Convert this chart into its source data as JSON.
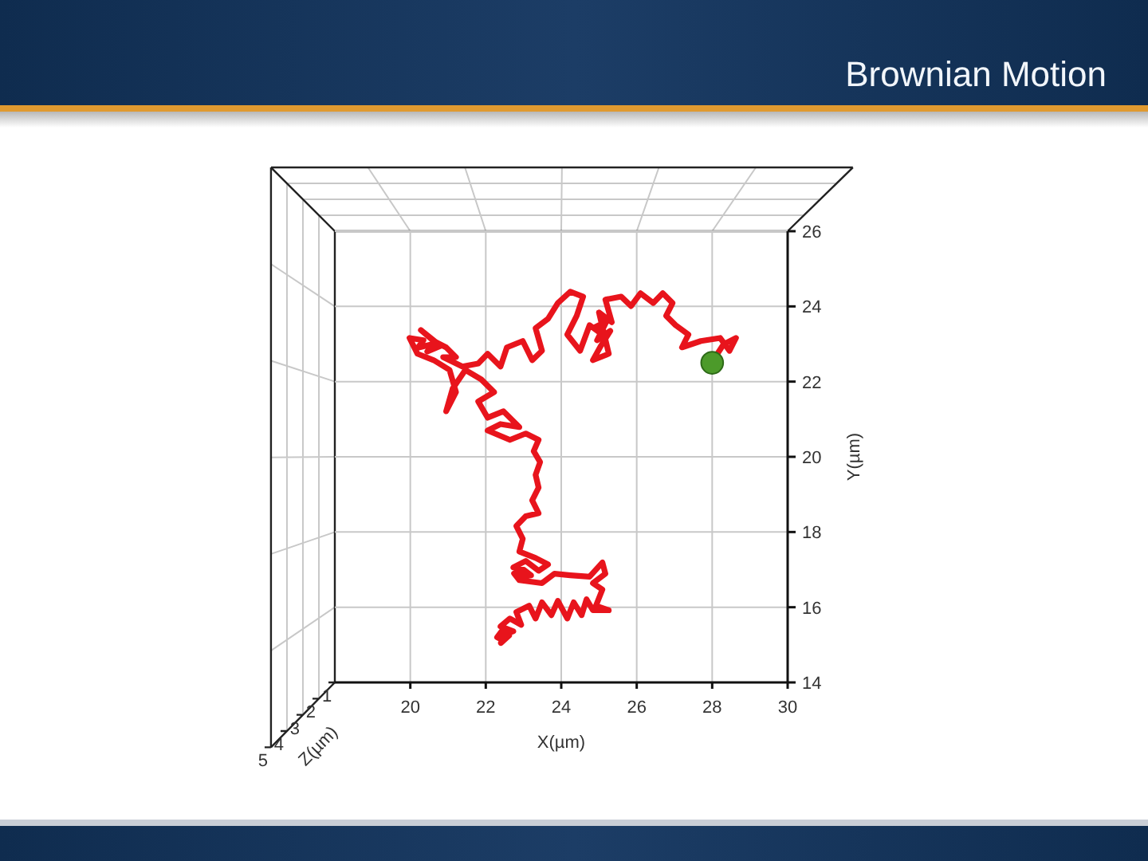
{
  "chart_data": {
    "type": "line",
    "title": "Brownian Motion",
    "xlabel": "X(µm)",
    "ylabel": "Y(µm)",
    "annotations": [
      "Z(µm)",
      "1",
      "2",
      "3",
      "4",
      "5"
    ],
    "xlim": [
      18,
      30
    ],
    "xticks": [
      20,
      22,
      24,
      26,
      28,
      30
    ],
    "ylim": [
      14,
      26
    ],
    "yticks": [
      14,
      16,
      18,
      20,
      22,
      24,
      26
    ],
    "grid": true,
    "series": [
      {
        "color": "#e8141c",
        "x": [
          22.47,
          22.3,
          22.45,
          22.62,
          22.4,
          22.55,
          22.73,
          22.39,
          22.64,
          22.94,
          22.81,
          23.15,
          23.32,
          23.49,
          23.74,
          23.91,
          24.16,
          24.33,
          24.54,
          24.67,
          24.84,
          25.26,
          24.92,
          25.09,
          24.84,
          25.17,
          25.09,
          24.75,
          24.24,
          23.82,
          23.49,
          22.89,
          22.75,
          23.05,
          22.85,
          23.2,
          23.0,
          22.73,
          23.06,
          23.4,
          23.65,
          23.32,
          22.89,
          22.98,
          22.81,
          23.06,
          23.4,
          23.23,
          23.4,
          23.32,
          23.44,
          23.27,
          23.4,
          23.06,
          22.64,
          22.05,
          22.39,
          22.89,
          22.47,
          22.05,
          21.8,
          22.22,
          21.88,
          21.46,
          21.12,
          20.95,
          21.21,
          21.04,
          20.62,
          20.19,
          19.98,
          20.35,
          20.2,
          20.6,
          20.45,
          20.8,
          20.28,
          20.62,
          20.95,
          21.21,
          20.87,
          21.38,
          21.8,
          22.05,
          22.39,
          22.56,
          22.98,
          23.23,
          23.49,
          23.32,
          23.65,
          23.91,
          24.24,
          24.58,
          24.41,
          24.16,
          24.5,
          24.75,
          25.09,
          24.9,
          25.2,
          24.95,
          25.3,
          25.05,
          24.84,
          25.26,
          25.0,
          25.34,
          25.17,
          25.59,
          25.85,
          26.1,
          26.44,
          26.69,
          26.95,
          26.78,
          27.03,
          27.37,
          27.2,
          27.7,
          28.21,
          28.46,
          28.63,
          28.3,
          28.0
        ],
        "values": [
          15.11,
          15.2,
          15.4,
          15.25,
          15.05,
          15.3,
          15.36,
          15.49,
          15.7,
          15.53,
          15.87,
          16.04,
          15.7,
          16.13,
          15.79,
          16.17,
          15.7,
          16.13,
          15.79,
          16.21,
          15.92,
          15.92,
          16.04,
          16.47,
          16.64,
          16.89,
          17.19,
          16.81,
          16.85,
          16.89,
          16.64,
          16.72,
          16.9,
          16.95,
          16.8,
          16.85,
          17.0,
          17.06,
          17.23,
          16.97,
          17.14,
          17.31,
          17.48,
          17.82,
          18.16,
          18.42,
          18.5,
          18.84,
          19.18,
          19.52,
          19.86,
          20.15,
          20.45,
          20.62,
          20.45,
          20.7,
          20.87,
          20.79,
          21.21,
          21.04,
          21.47,
          21.72,
          22.06,
          22.31,
          21.81,
          21.21,
          21.72,
          22.31,
          22.57,
          22.74,
          23.16,
          23.1,
          22.9,
          23.0,
          22.8,
          22.95,
          23.37,
          23.08,
          22.91,
          22.65,
          22.65,
          22.4,
          22.48,
          22.74,
          22.4,
          22.91,
          23.08,
          22.57,
          22.82,
          23.42,
          23.67,
          24.09,
          24.39,
          24.26,
          23.75,
          23.25,
          22.82,
          23.5,
          23.25,
          23.45,
          23.6,
          23.1,
          23.35,
          22.95,
          22.57,
          22.74,
          23.84,
          23.58,
          24.18,
          24.26,
          24.01,
          24.35,
          24.09,
          24.35,
          24.09,
          23.75,
          23.5,
          23.25,
          22.91,
          23.08,
          23.16,
          22.82,
          23.16,
          22.99,
          22.53
        ]
      },
      {
        "type": "scatter",
        "color": "#4c9a2a",
        "marker": "circle",
        "x": [
          28.0
        ],
        "values": [
          22.5
        ]
      }
    ]
  }
}
